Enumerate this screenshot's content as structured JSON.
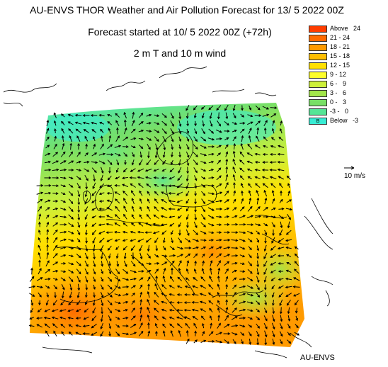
{
  "header": {
    "title": "AU-ENVS THOR Weather and Air Pollution Forecast for 13/ 5 2022  00Z",
    "subtitle": "Forecast started at 10/ 5 2022  00Z (+72h)",
    "variable": "2 m T and 10 m wind"
  },
  "legend": {
    "items": [
      {
        "label": "Above   24",
        "color": "#ff3d00"
      },
      {
        "label": "21 - 24",
        "color": "#ff6a00"
      },
      {
        "label": "18 - 21",
        "color": "#ff9a00"
      },
      {
        "label": "15 - 18",
        "color": "#ffbe00"
      },
      {
        "label": "12 - 15",
        "color": "#ffe000"
      },
      {
        "label": "9 - 12",
        "color": "#fdfd2a"
      },
      {
        "label": "6 -   9",
        "color": "#cdf03a"
      },
      {
        "label": "3 -   6",
        "color": "#a2e64a"
      },
      {
        "label": "0 -   3",
        "color": "#78df66"
      },
      {
        "label": "-3 -   0",
        "color": "#55e596"
      },
      {
        "label": "Below   -3",
        "color": "#38ecd4",
        "symbol": "B"
      }
    ]
  },
  "wind_scale": {
    "label": "10 m/s"
  },
  "credit": "AU-ENVS"
}
